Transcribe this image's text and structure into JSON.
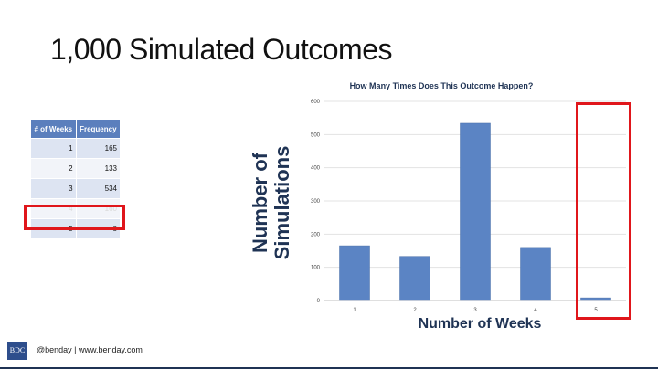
{
  "slide": {
    "title": "1,000 Simulated Outcomes",
    "footer": "@benday | www.benday.com",
    "logo": "BDC"
  },
  "table": {
    "headers": [
      "# of Weeks",
      "Frequency"
    ],
    "rows": [
      [
        "1",
        "165"
      ],
      [
        "2",
        "133"
      ],
      [
        "3",
        "534"
      ],
      [
        "4",
        "160"
      ],
      [
        "5",
        "8"
      ]
    ]
  },
  "chart_labels": {
    "title": "How Many Times Does This Outcome Happen?",
    "ylabel": "Number of Simulations",
    "xlabel": "Number of Weeks"
  },
  "chart_data": {
    "type": "bar",
    "title": "How Many Times Does This Outcome Happen?",
    "xlabel": "Number of Weeks",
    "ylabel": "Number of Simulations",
    "categories": [
      "1",
      "2",
      "3",
      "4",
      "5"
    ],
    "values": [
      165,
      133,
      534,
      160,
      8
    ],
    "ylim": [
      0,
      600
    ],
    "yticks": [
      0,
      100,
      200,
      300,
      400,
      500,
      600
    ],
    "grid": true,
    "bar_color": "#5b84c4"
  },
  "colors": {
    "highlight": "#e0161b",
    "header": "#5b7fbd"
  }
}
